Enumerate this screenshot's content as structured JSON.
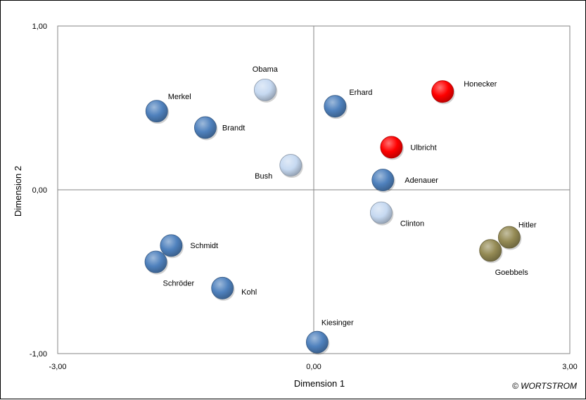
{
  "chart_data": {
    "type": "scatter",
    "xlabel": "Dimension 1",
    "ylabel": "Dimension 2",
    "xlim": [
      -3,
      3
    ],
    "ylim": [
      -1,
      1
    ],
    "x_ticks": [
      "-3,00",
      "0,00",
      "3,00"
    ],
    "y_ticks": [
      "1,00",
      "0,00",
      "-1,00"
    ],
    "grid": false,
    "origin_lines": true,
    "points": [
      {
        "label": "Merkel",
        "x": -1.84,
        "y": 0.48,
        "group": "blue"
      },
      {
        "label": "Brandt",
        "x": -1.27,
        "y": 0.38,
        "group": "blue"
      },
      {
        "label": "Obama",
        "x": -0.57,
        "y": 0.61,
        "group": "light"
      },
      {
        "label": "Bush",
        "x": -0.27,
        "y": 0.15,
        "group": "light"
      },
      {
        "label": "Erhard",
        "x": 0.25,
        "y": 0.51,
        "group": "blue"
      },
      {
        "label": "Honecker",
        "x": 1.51,
        "y": 0.6,
        "group": "red"
      },
      {
        "label": "Ulbricht",
        "x": 0.91,
        "y": 0.26,
        "group": "red"
      },
      {
        "label": "Adenauer",
        "x": 0.81,
        "y": 0.06,
        "group": "blue"
      },
      {
        "label": "Clinton",
        "x": 0.79,
        "y": -0.14,
        "group": "light"
      },
      {
        "label": "Hitler",
        "x": 2.29,
        "y": -0.29,
        "group": "olive"
      },
      {
        "label": "Goebbels",
        "x": 2.07,
        "y": -0.37,
        "group": "olive"
      },
      {
        "label": "Schmidt",
        "x": -1.67,
        "y": -0.34,
        "group": "blue"
      },
      {
        "label": "Schröder",
        "x": -1.85,
        "y": -0.44,
        "group": "blue"
      },
      {
        "label": "Kohl",
        "x": -1.07,
        "y": -0.6,
        "group": "blue"
      },
      {
        "label": "Kiesinger",
        "x": 0.04,
        "y": -0.93,
        "group": "blue"
      }
    ]
  },
  "colors": {
    "blue": "#4f81bd",
    "light": "#c6d9f1",
    "red": "#ff0000",
    "olive": "#948a54"
  },
  "copyright": "© WORTSTROM"
}
